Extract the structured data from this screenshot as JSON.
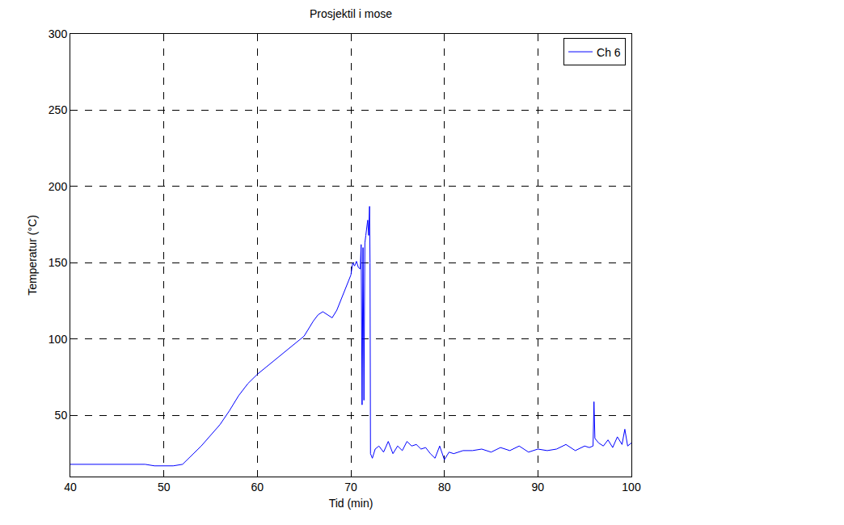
{
  "chart_data": {
    "type": "line",
    "title": "Prosjektil i mose",
    "x_label": "Tid (min)",
    "y_label": "Temperatur (°C)",
    "x": [
      40,
      45,
      48,
      49,
      50,
      51,
      52,
      53,
      54,
      55,
      56,
      57,
      58,
      59,
      60,
      61,
      62,
      63,
      64,
      65,
      66,
      66.5,
      67,
      67.5,
      68,
      68.5,
      69,
      69.5,
      70,
      70.2,
      70.4,
      70.6,
      70.8,
      71,
      71.1,
      71.2,
      71.3,
      71.4,
      71.5,
      71.6,
      71.7,
      71.8,
      71.9,
      72,
      72.05,
      72.1,
      72.3,
      72.6,
      73,
      73.5,
      74,
      74.5,
      75,
      75.5,
      76,
      76.5,
      77,
      77.5,
      78,
      78.5,
      79,
      79.5,
      80,
      80.5,
      81,
      82,
      83,
      84,
      85,
      86,
      87,
      88,
      89,
      90,
      91,
      92,
      93,
      94,
      95,
      95.5,
      95.9,
      96,
      96.1,
      96.5,
      97,
      97.5,
      98,
      98.5,
      99,
      99.3,
      99.6,
      100
    ],
    "series": [
      {
        "name": "Ch 6",
        "color": "#0000ff",
        "values": [
          18,
          18,
          18,
          17,
          17,
          17,
          18,
          24,
          30,
          37,
          44,
          53,
          63,
          71,
          77,
          82,
          87,
          92,
          97,
          102,
          112,
          116,
          118,
          116,
          114,
          119,
          127,
          135,
          142,
          150,
          148,
          151,
          147,
          146,
          162,
          57,
          160,
          60,
          163,
          168,
          172,
          178,
          168,
          187,
          150,
          25,
          22,
          28,
          30,
          26,
          33,
          25,
          30,
          27,
          33,
          30,
          31,
          28,
          29,
          25,
          22,
          30,
          21,
          26,
          25,
          27,
          27,
          28,
          26,
          29,
          27,
          30,
          26,
          28,
          27,
          28,
          31,
          27,
          30,
          29,
          30,
          59,
          35,
          32,
          30,
          34,
          29,
          36,
          31,
          41,
          30,
          32
        ]
      }
    ],
    "xlim": [
      40,
      100
    ],
    "xticks": [
      40,
      50,
      60,
      70,
      80,
      90,
      100
    ],
    "ylim": [
      10,
      300
    ],
    "yticks": [
      50,
      100,
      150,
      200,
      250,
      300
    ],
    "grid": true,
    "legend": "top-right"
  }
}
